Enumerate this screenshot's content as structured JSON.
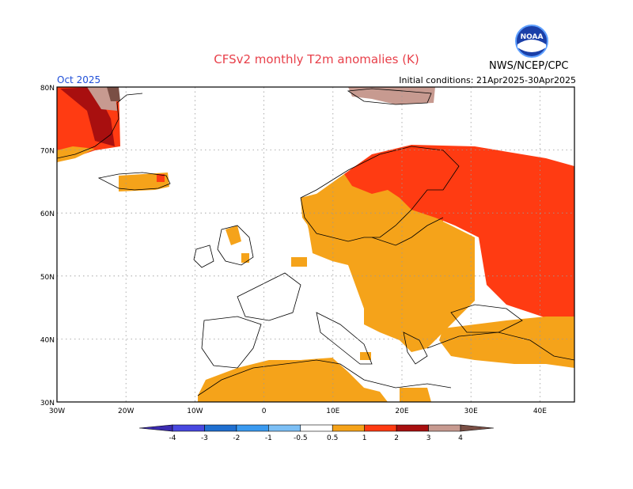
{
  "title": "CFSv2 monthly T2m anomalies (K)",
  "valid_month": "Oct 2025",
  "initial_conditions": "Initial conditions: 21Apr2025-30Apr2025",
  "agency": "NWS/NCEP/CPC",
  "logo_text": "NOAA",
  "axes": {
    "lat_ticks": [
      "80N",
      "70N",
      "60N",
      "50N",
      "40N",
      "30N"
    ],
    "lon_ticks": [
      "30W",
      "20W",
      "10W",
      "0",
      "10E",
      "20E",
      "30E",
      "40E"
    ]
  },
  "colorbar": {
    "labels": [
      "-4",
      "-3",
      "-2",
      "-1",
      "-0.5",
      "0.5",
      "1",
      "2",
      "3",
      "4"
    ],
    "colors": [
      "#3b2bb0",
      "#4848e0",
      "#1f6fd0",
      "#3a9af0",
      "#7cbff5",
      "#ffffff",
      "#f5a31a",
      "#ff3b12",
      "#a80f0f",
      "#c79a90",
      "#7a4f45"
    ]
  },
  "colors": {
    "c05": "#f5a31a",
    "c1": "#ff3b12",
    "c2": "#a80f0f",
    "c3": "#c79a90",
    "c4": "#7a4f45"
  }
}
